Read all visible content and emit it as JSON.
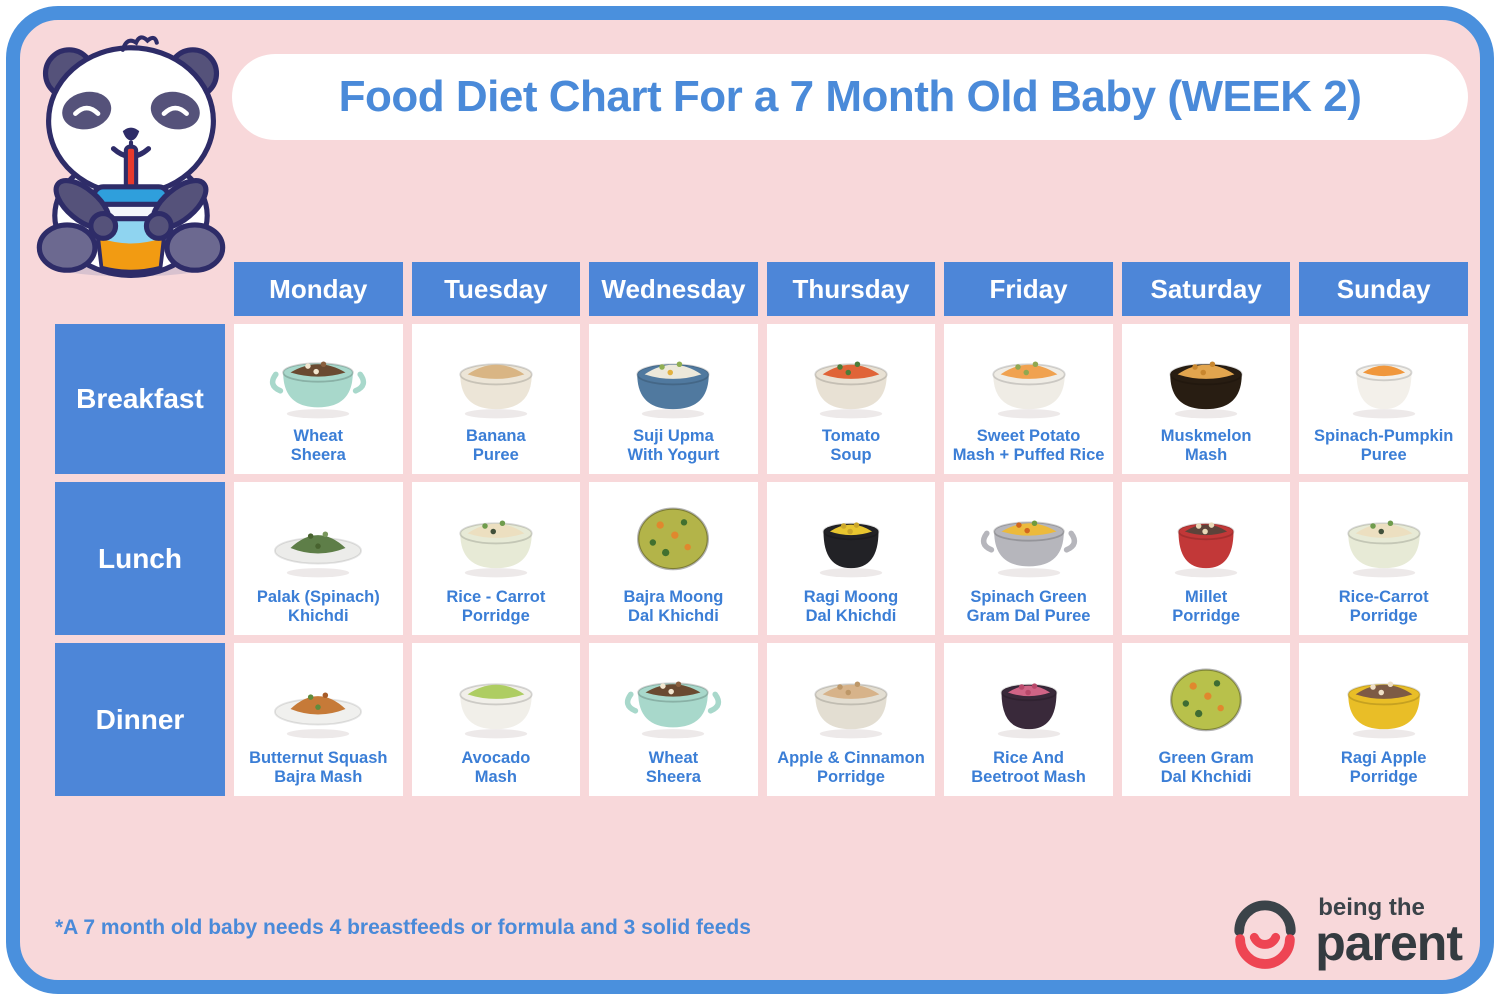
{
  "title": "Food Diet Chart For a 7 Month Old Baby (WEEK 2)",
  "days": [
    "Monday",
    "Tuesday",
    "Wednesday",
    "Thursday",
    "Friday",
    "Saturday",
    "Sunday"
  ],
  "meals": [
    {
      "label": "Breakfast",
      "items": [
        {
          "name": "Wheat\nSheera",
          "icon": {
            "shape": "pot",
            "bowl": "#a8d8cb",
            "food": "#6a4a31",
            "speck": "#f2e6cf",
            "speck2": "#8a5f3e"
          }
        },
        {
          "name": "Banana\nPuree",
          "icon": {
            "shape": "bowl",
            "bowl": "#ece5d7",
            "food": "#d9b584"
          }
        },
        {
          "name": "Suji Upma\nWith Yogurt",
          "icon": {
            "shape": "bowl",
            "bowl": "#50799f",
            "food": "#ece8da",
            "speck": "#8fae52",
            "speck2": "#e2b13f"
          }
        },
        {
          "name": "Tomato\nSoup",
          "icon": {
            "shape": "bowl",
            "bowl": "#e8e1d4",
            "food": "#e06438",
            "speck": "#4c7c38"
          }
        },
        {
          "name": "Sweet Potato\nMash + Puffed Rice",
          "icon": {
            "shape": "bowl",
            "bowl": "#efece5",
            "food": "#f0a250",
            "speck": "#90a850"
          }
        },
        {
          "name": "Muskmelon\nMash",
          "icon": {
            "shape": "bowl",
            "bowl": "#281d12",
            "food": "#e2a54e",
            "speck": "#c8862e"
          }
        },
        {
          "name": "Spinach-Pumpkin\nPuree",
          "icon": {
            "shape": "cup",
            "bowl": "#f3f0ea",
            "food": "#f0973c"
          }
        }
      ]
    },
    {
      "label": "Lunch",
      "items": [
        {
          "name": "Palak (Spinach)\nKhichdi",
          "icon": {
            "shape": "plate",
            "bowl": "#ececea",
            "food": "#5e7e48",
            "speck": "#48632f",
            "speck2": "#79975c"
          }
        },
        {
          "name": "Rice - Carrot\nPorridge",
          "icon": {
            "shape": "bowl",
            "bowl": "#e7ead6",
            "food": "#ecdfc0",
            "speck": "#6f9c4d",
            "speck2": "#41503a"
          }
        },
        {
          "name": "Bajra Moong\nDal Khichdi",
          "icon": {
            "shape": "blob",
            "food": "#b3b449",
            "speck": "#e0882e",
            "speck2": "#42702f"
          }
        },
        {
          "name": "Ragi Moong\nDal Khichdi",
          "icon": {
            "shape": "cup",
            "bowl": "#222226",
            "food": "#e7c52f",
            "speck": "#caa62a"
          }
        },
        {
          "name": "Spinach Green\nGram Dal Puree",
          "icon": {
            "shape": "pot",
            "bowl": "#b6b6bc",
            "food": "#ecba3c",
            "speck": "#d2671f",
            "speck2": "#6f9a3f"
          }
        },
        {
          "name": "Millet\nPorridge",
          "icon": {
            "shape": "cup",
            "bowl": "#c23838",
            "food": "#5c433a",
            "speck": "#e9d9b8"
          }
        },
        {
          "name": "Rice-Carrot\nPorridge",
          "icon": {
            "shape": "bowl",
            "bowl": "#e7ead6",
            "food": "#ecdfc0",
            "speck": "#6f9c4d",
            "speck2": "#41503a"
          }
        }
      ]
    },
    {
      "label": "Dinner",
      "items": [
        {
          "name": "Butternut Squash\nBajra Mash",
          "icon": {
            "shape": "plate",
            "bowl": "#f0f0ee",
            "food": "#c67a38",
            "speck": "#5f8c3e",
            "speck2": "#a85c28"
          }
        },
        {
          "name": "Avocado\nMash",
          "icon": {
            "shape": "bowl",
            "bowl": "#f1efe9",
            "food": "#aecd62"
          }
        },
        {
          "name": "Wheat\nSheera",
          "icon": {
            "shape": "pot",
            "bowl": "#a8d8cb",
            "food": "#6a4a31",
            "speck": "#f2e6cf",
            "speck2": "#8a5f3e"
          }
        },
        {
          "name": "Apple & Cinnamon\nPorridge",
          "icon": {
            "shape": "bowl",
            "bowl": "#e3ded2",
            "food": "#d7b38a",
            "speck": "#bd9768"
          }
        },
        {
          "name": "Rice And\nBeetroot Mash",
          "icon": {
            "shape": "cup",
            "bowl": "#39293a",
            "food": "#d06486",
            "speck": "#b8496b"
          }
        },
        {
          "name": "Green Gram\nDal Khchidi",
          "icon": {
            "shape": "blob",
            "food": "#b8c14b",
            "speck": "#e0882e",
            "speck2": "#3f6c33"
          }
        },
        {
          "name": "Ragi Apple\nPorridge",
          "icon": {
            "shape": "bowl",
            "bowl": "#e9be27",
            "food": "#7d5b45",
            "speck": "#efe0c6"
          }
        }
      ]
    }
  ],
  "footnote": "*A 7 month old baby needs 4 breastfeeds or formula and 3 solid feeds",
  "logo": {
    "line1": "being the",
    "line2": "parent"
  },
  "colors": {
    "frame_blue": "#4a90dd",
    "card_pink": "#f8d8da",
    "header_blue": "#4d86d8",
    "title_blue": "#4a8ad9",
    "label_blue": "#3b7ed6",
    "logo_dark": "#3b4349",
    "logo_red": "#ee4553"
  }
}
